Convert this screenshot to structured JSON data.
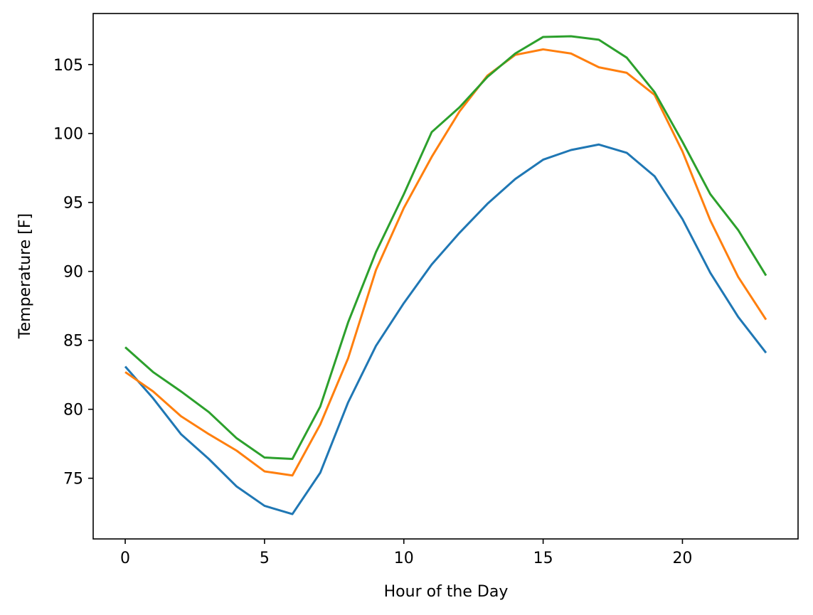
{
  "chart_data": {
    "type": "line",
    "xlabel": "Hour of the Day",
    "ylabel": "Temperature [F]",
    "xlim": [
      -1.15,
      24.15
    ],
    "ylim": [
      70.6,
      108.7
    ],
    "x_ticks": [
      0,
      5,
      10,
      15,
      20
    ],
    "y_ticks": [
      75,
      80,
      85,
      90,
      95,
      100,
      105
    ],
    "x_tick_labels": [
      "0",
      "5",
      "10",
      "15",
      "20"
    ],
    "y_tick_labels": [
      "75",
      "80",
      "85",
      "90",
      "95",
      "100",
      "105"
    ],
    "grid": false,
    "legend": "none",
    "x": [
      0,
      1,
      2,
      3,
      4,
      5,
      6,
      7,
      8,
      9,
      10,
      11,
      12,
      13,
      14,
      15,
      16,
      17,
      18,
      19,
      20,
      21,
      22,
      23
    ],
    "series": [
      {
        "color": "#1f77b4",
        "values": [
          83.1,
          80.8,
          78.2,
          76.4,
          74.4,
          73.0,
          72.4,
          75.4,
          80.5,
          84.6,
          87.7,
          90.5,
          92.8,
          94.9,
          96.7,
          98.1,
          98.8,
          99.2,
          98.6,
          96.9,
          93.8,
          89.9,
          86.7,
          84.1
        ]
      },
      {
        "color": "#ff7f0e",
        "values": [
          82.7,
          81.3,
          79.5,
          78.2,
          77.0,
          75.5,
          75.2,
          78.9,
          83.7,
          90.1,
          94.6,
          98.3,
          101.6,
          104.2,
          105.7,
          106.1,
          105.8,
          104.8,
          104.4,
          102.8,
          98.7,
          93.7,
          89.6,
          86.5
        ]
      },
      {
        "color": "#2ca02c",
        "values": [
          84.5,
          82.7,
          81.3,
          79.8,
          77.9,
          76.5,
          76.4,
          80.2,
          86.3,
          91.4,
          95.6,
          100.1,
          101.9,
          104.1,
          105.8,
          107.0,
          107.05,
          106.8,
          105.5,
          103.0,
          99.4,
          95.6,
          93.0,
          89.7
        ]
      }
    ]
  }
}
